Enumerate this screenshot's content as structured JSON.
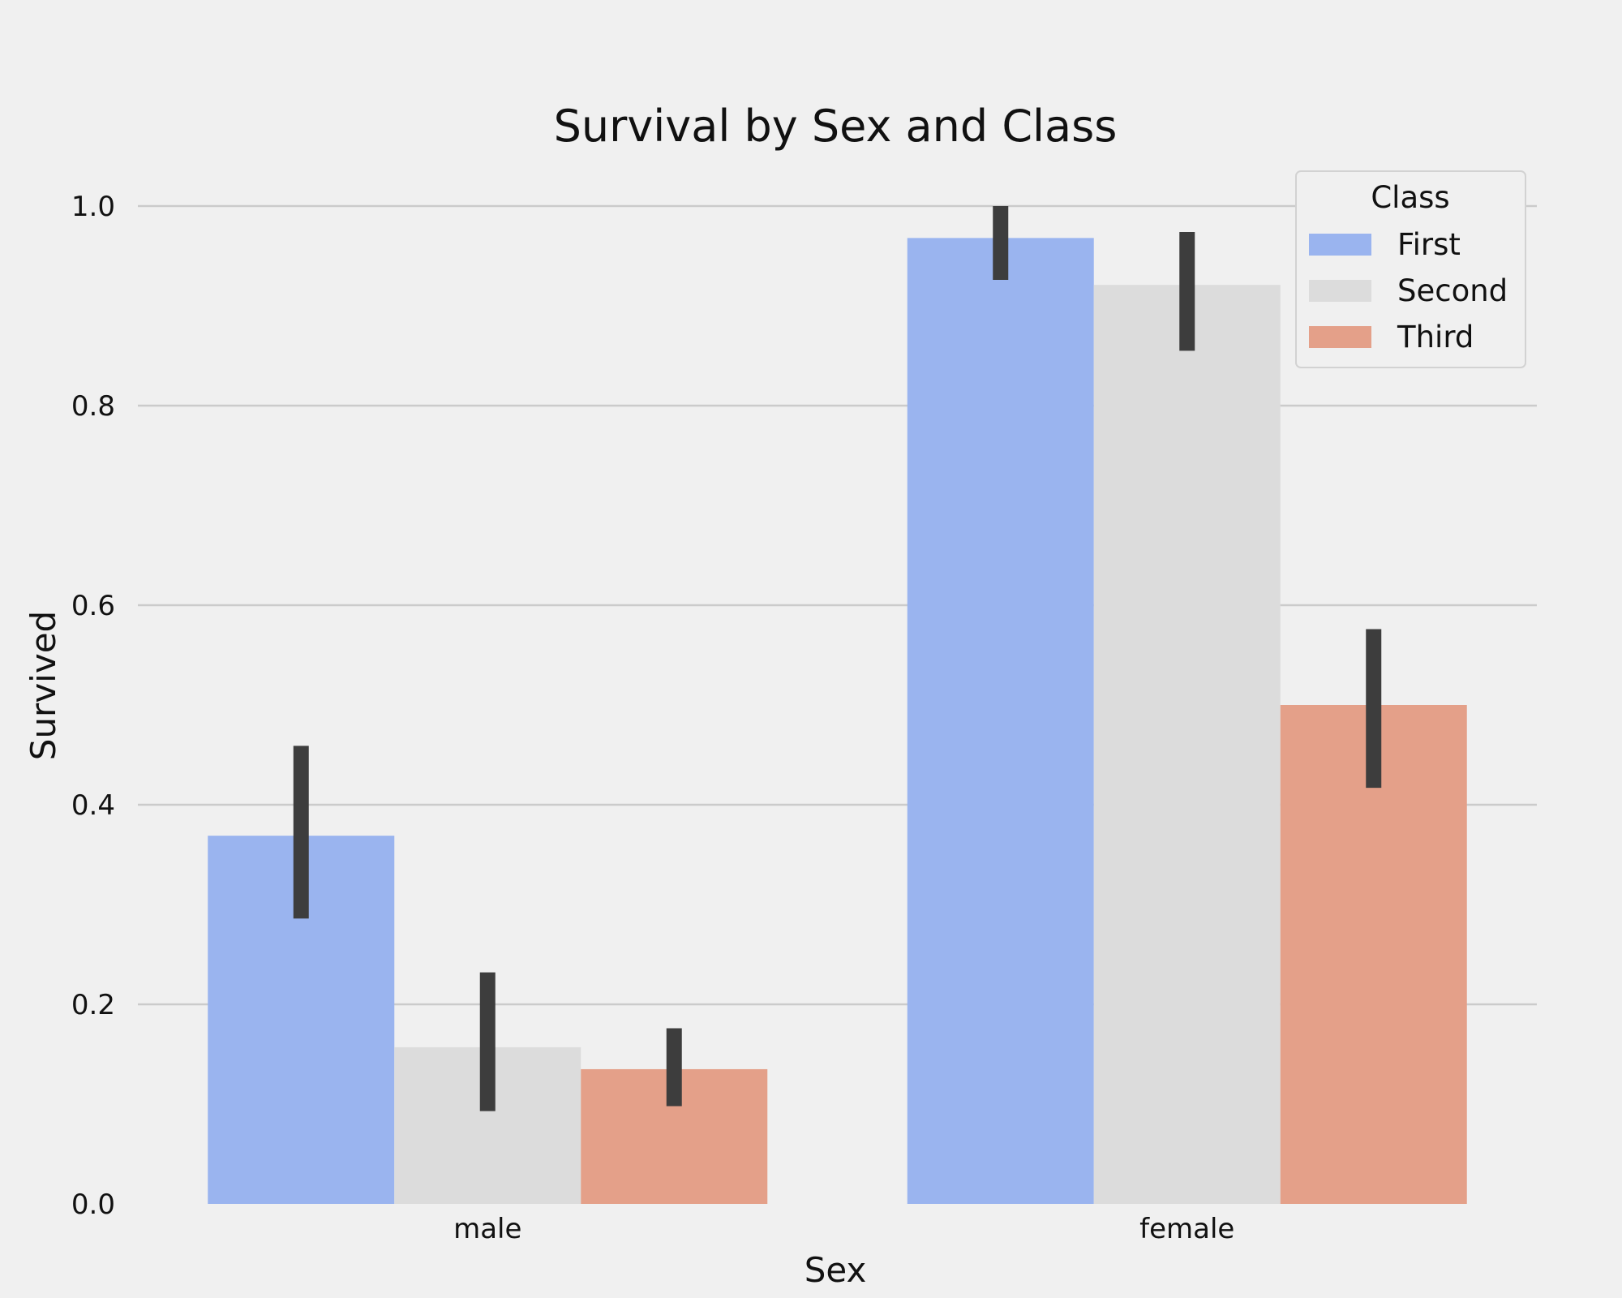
{
  "chart_data": {
    "type": "bar",
    "title": "Survival by Sex and Class",
    "xlabel": "Sex",
    "ylabel": "Survived",
    "categories": [
      "male",
      "female"
    ],
    "series": [
      {
        "name": "First",
        "color": "#9ab4ef",
        "values": [
          0.369,
          0.968
        ],
        "ci_low": [
          0.286,
          0.926
        ],
        "ci_high": [
          0.459,
          1.0
        ]
      },
      {
        "name": "Second",
        "color": "#dcdcdc",
        "values": [
          0.157,
          0.921
        ],
        "ci_low": [
          0.093,
          0.855
        ],
        "ci_high": [
          0.232,
          0.974
        ]
      },
      {
        "name": "Third",
        "color": "#e4a089",
        "values": [
          0.135,
          0.5
        ],
        "ci_low": [
          0.098,
          0.417
        ],
        "ci_high": [
          0.176,
          0.576
        ]
      }
    ],
    "ylim": [
      0,
      1.0
    ],
    "yticks": [
      "0.0",
      "0.2",
      "0.4",
      "0.6",
      "0.8",
      "1.0"
    ],
    "grid": true,
    "legend": {
      "title": "Class",
      "position": "top-right"
    }
  }
}
